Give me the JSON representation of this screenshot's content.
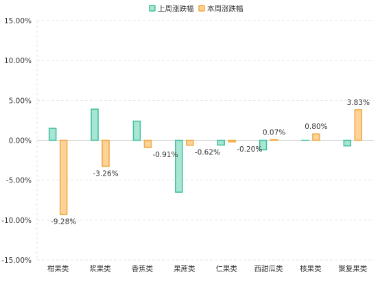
{
  "chart_data": {
    "type": "bar",
    "categories": [
      "柑果类",
      "浆果类",
      "香蕉类",
      "果蔗类",
      "仁果类",
      "西甜瓜类",
      "核果类",
      "聚复果类"
    ],
    "series": [
      {
        "name": "上周涨跌幅",
        "values": [
          1.5,
          3.9,
          2.4,
          -6.5,
          -0.6,
          -1.2,
          0.0,
          -0.7
        ],
        "color": "#6cd0b4",
        "fill": "#a8e6d4",
        "stroke": "#3bbf9c",
        "labels": [
          "",
          "",
          "",
          "",
          "",
          "",
          "",
          ""
        ]
      },
      {
        "name": "本周涨跌幅",
        "values": [
          -9.28,
          -3.26,
          -0.91,
          -0.62,
          -0.2,
          0.07,
          0.8,
          3.83
        ],
        "color": "#f7b85a",
        "fill": "#fdd39a",
        "stroke": "#f0a83c",
        "labels": [
          "-9.28%",
          "-3.26%",
          "-0.91%",
          "-0.62%",
          "-0.20%",
          "0.07%",
          "0.80%",
          "3.83%"
        ]
      }
    ],
    "y_ticks": [
      "15.00%",
      "10.00%",
      "5.00%",
      "0.00%",
      "-5.00%",
      "-10.00%",
      "-15.00%"
    ],
    "ylim": [
      -15,
      15
    ],
    "title": "",
    "xlabel": "",
    "ylabel": "",
    "grid": true,
    "legend_position": "top-center"
  }
}
